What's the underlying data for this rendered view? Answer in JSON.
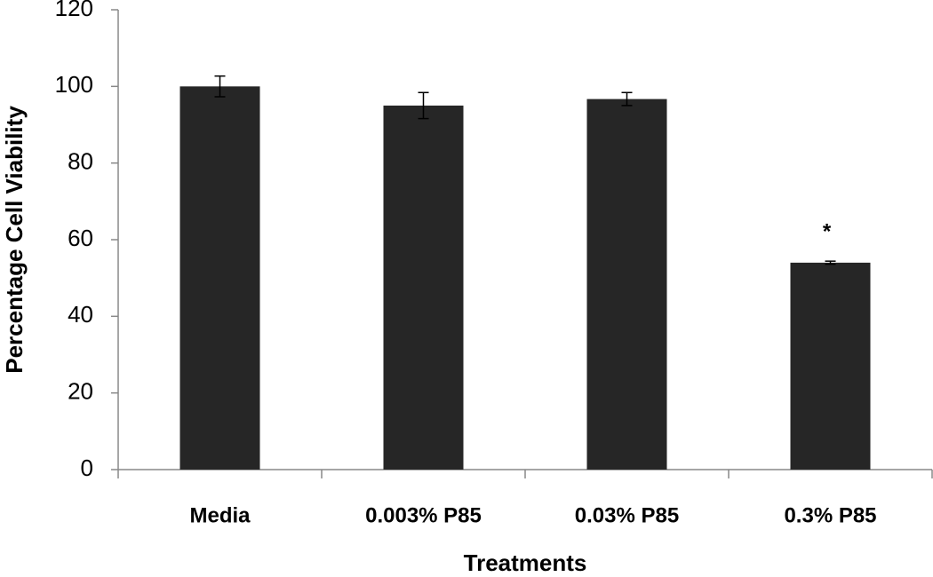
{
  "chart_data": {
    "type": "bar",
    "y_label": "Percentage Cell Viability",
    "x_label": "Treatments",
    "categories": [
      "Media",
      "0.003% P85",
      "0.03% P85",
      "0.3% P85"
    ],
    "values": [
      100,
      95,
      96.7,
      54
    ],
    "errors": [
      2.7,
      3.4,
      1.7,
      0.4
    ],
    "color": "#262626",
    "ylim": [
      0,
      120
    ],
    "yticks": [
      0,
      20,
      40,
      60,
      80,
      100,
      120
    ],
    "annotations": [
      {
        "text": "*",
        "category": "0.3% P85"
      }
    ]
  }
}
